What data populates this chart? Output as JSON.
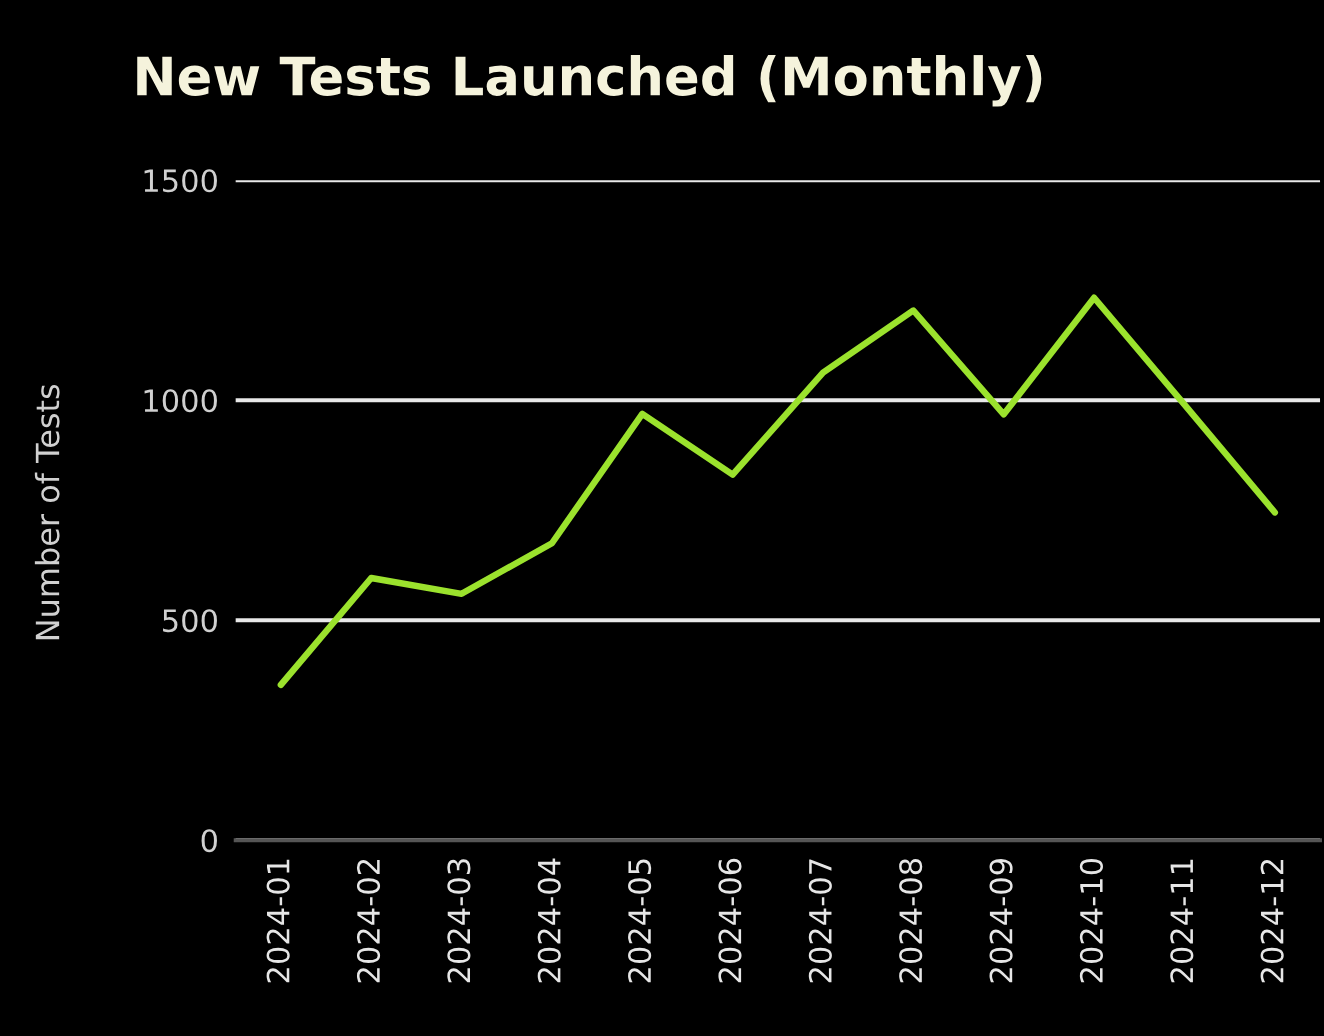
{
  "chart_data": {
    "type": "line",
    "title": "New Tests Launched (Monthly)",
    "ylabel": "Number of Tests",
    "categories": [
      "2024-01",
      "2024-02",
      "2024-03",
      "2024-04",
      "2024-05",
      "2024-06",
      "2024-07",
      "2024-08",
      "2024-09",
      "2024-10",
      "2024-11",
      "2024-12"
    ],
    "series": [
      {
        "color": "#9be22d",
        "values": [
          353,
          596,
          560,
          675,
          969,
          831,
          1063,
          1204,
          968,
          1233,
          990,
          745
        ]
      }
    ],
    "ylim": [
      0,
      1500
    ],
    "yticks": [
      0,
      500,
      1000,
      1500
    ],
    "grid": "y"
  }
}
